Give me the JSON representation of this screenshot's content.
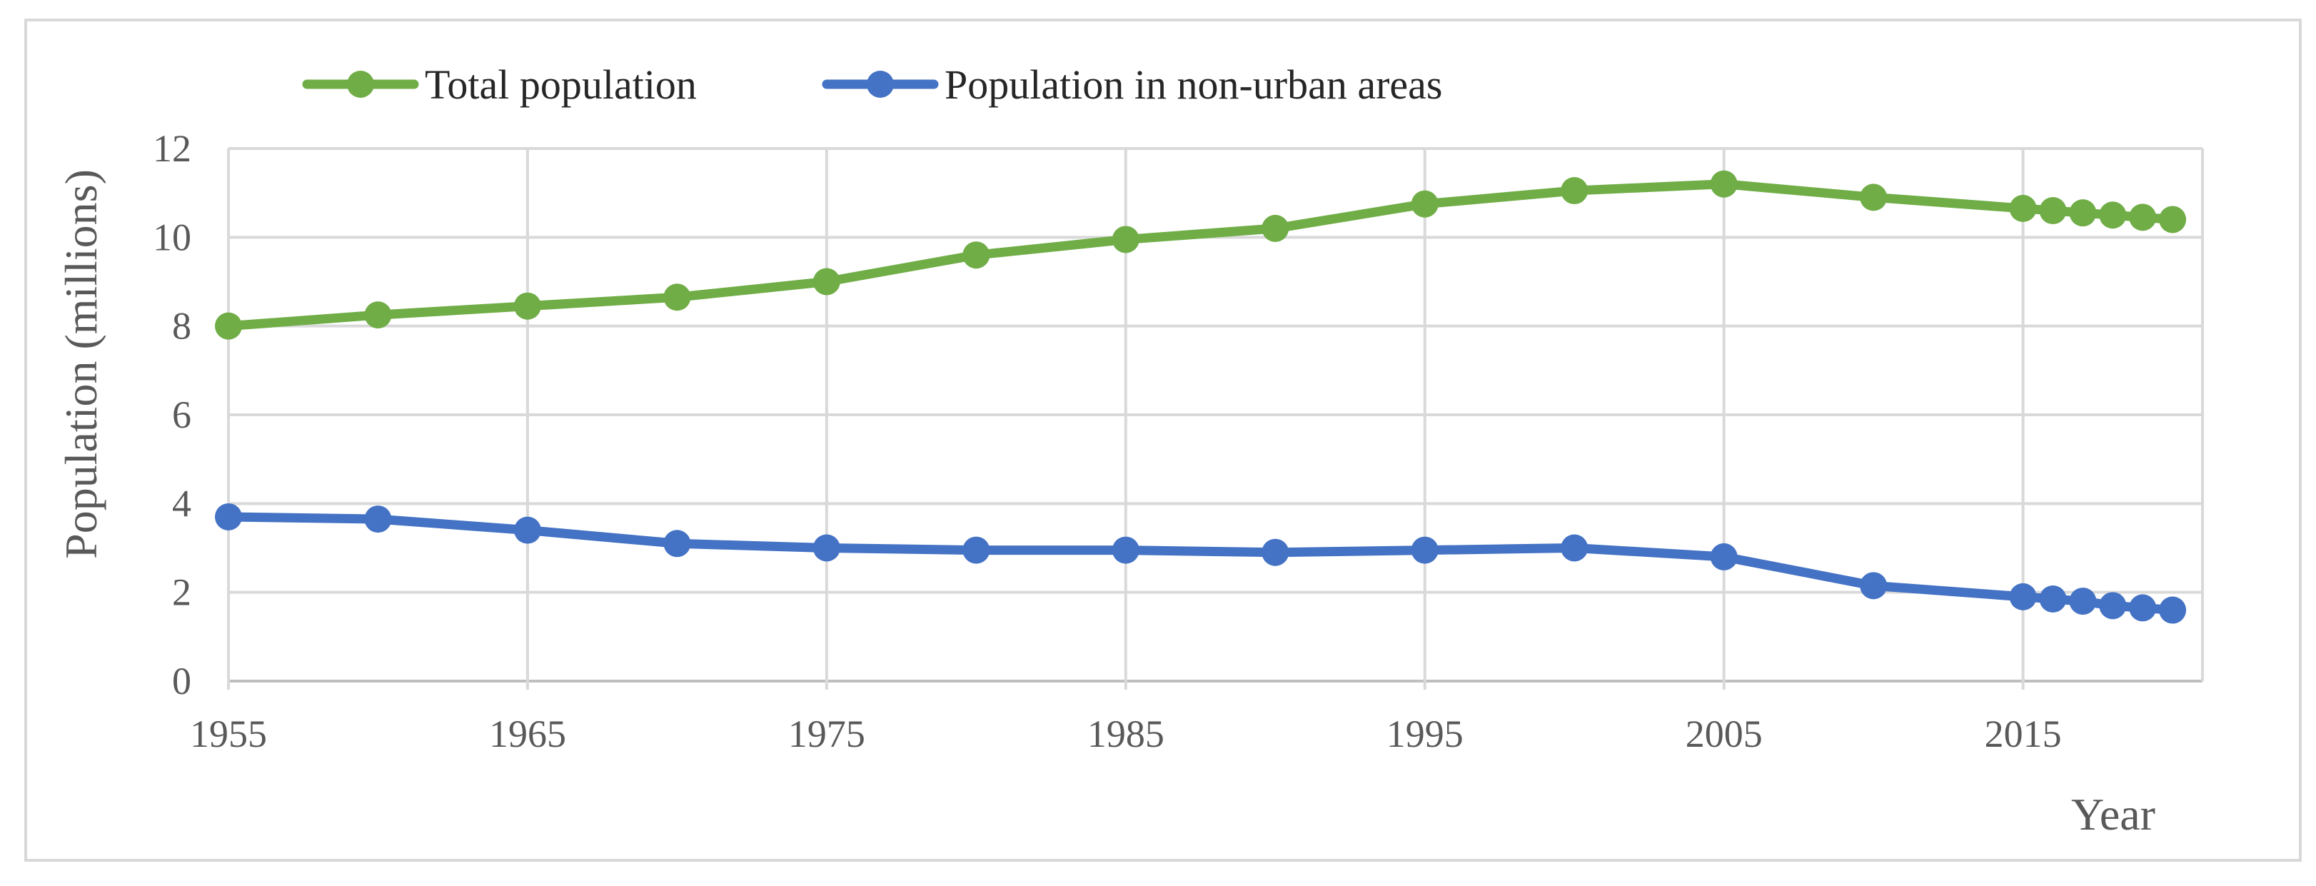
{
  "chart_data": {
    "type": "line",
    "title": "",
    "xlabel": "Year",
    "ylabel": "Population (millions)",
    "x_ticks": [
      1955,
      1965,
      1975,
      1985,
      1995,
      2005,
      2015
    ],
    "y_ticks": [
      0,
      2,
      4,
      6,
      8,
      10,
      12
    ],
    "xlim": [
      1955,
      2021
    ],
    "ylim": [
      0,
      12
    ],
    "grid": true,
    "legend_position": "top-left",
    "x": [
      1955,
      1960,
      1965,
      1970,
      1975,
      1980,
      1985,
      1990,
      1995,
      2000,
      2005,
      2010,
      2015,
      2016,
      2017,
      2018,
      2019,
      2020
    ],
    "series": [
      {
        "name": "Total population",
        "color": "#70ad47",
        "values": [
          8.0,
          8.25,
          8.45,
          8.65,
          9.0,
          9.6,
          9.95,
          10.2,
          10.75,
          11.05,
          11.2,
          10.9,
          10.65,
          10.6,
          10.55,
          10.5,
          10.45,
          10.4
        ]
      },
      {
        "name": "Population in non-urban areas",
        "color": "#4472c4",
        "values": [
          3.7,
          3.65,
          3.4,
          3.1,
          3.0,
          2.95,
          2.95,
          2.9,
          2.95,
          3.0,
          2.8,
          2.15,
          1.9,
          1.85,
          1.8,
          1.7,
          1.65,
          1.6
        ]
      }
    ]
  }
}
